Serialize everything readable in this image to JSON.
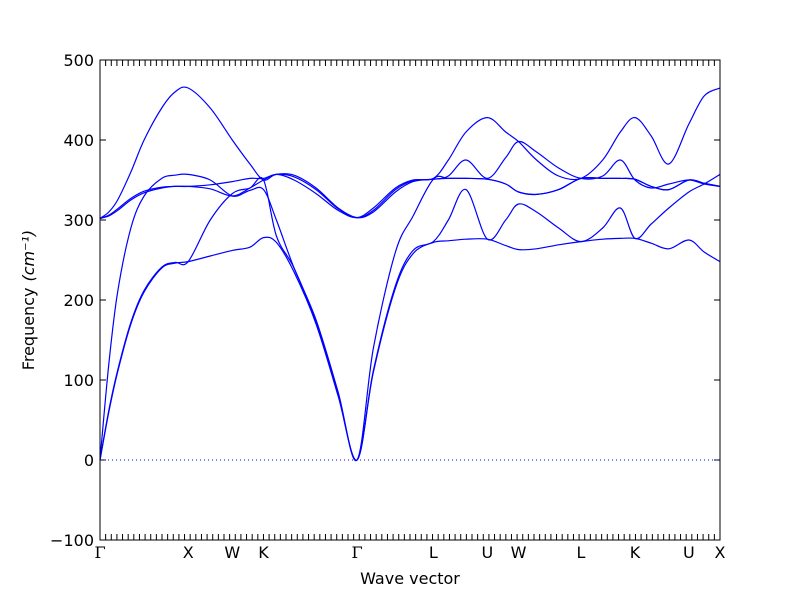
{
  "chart_data": {
    "type": "line",
    "xlabel": "Wave vector",
    "ylabel": "Frequency",
    "ylabel_unit": "(cm⁻¹)",
    "ylim": [
      -100,
      500
    ],
    "yticks": [
      -100,
      0,
      100,
      200,
      300,
      400,
      500
    ],
    "zero_line": 0,
    "high_symmetry_points": [
      {
        "label": "Γ",
        "x": 0.0
      },
      {
        "label": "X",
        "x": 1.0
      },
      {
        "label": "W",
        "x": 1.5
      },
      {
        "label": "K",
        "x": 1.854
      },
      {
        "label": "Γ",
        "x": 2.914
      },
      {
        "label": "L",
        "x": 3.78
      },
      {
        "label": "U",
        "x": 4.392
      },
      {
        "label": "W",
        "x": 4.746
      },
      {
        "label": "L",
        "x": 5.453
      },
      {
        "label": "K",
        "x": 6.066
      },
      {
        "label": "U",
        "x": 6.677
      },
      {
        "label": "X",
        "x": 7.03
      }
    ],
    "line_color": "#0000ff",
    "series": [
      {
        "x": [
          0,
          0.1,
          0.2,
          0.35,
          0.5,
          0.7,
          0.85,
          1.0,
          1.25,
          1.5,
          1.7,
          1.854,
          2.0,
          2.2,
          2.45,
          2.7,
          2.914,
          3.1,
          3.35,
          3.55,
          3.78,
          3.95,
          4.15,
          4.392,
          4.6,
          4.746,
          4.95,
          5.2,
          5.453,
          5.7,
          5.9,
          6.066,
          6.25,
          6.45,
          6.677,
          6.85,
          7.03
        ],
        "y": [
          0,
          60,
          110,
          170,
          210,
          240,
          246,
          248,
          255,
          262,
          266,
          278,
          272,
          235,
          170,
          80,
          0,
          110,
          215,
          258,
          272,
          274,
          276,
          276,
          268,
          263,
          264,
          269,
          273,
          276,
          277,
          277,
          271,
          264,
          275,
          260,
          248
        ]
      },
      {
        "x": [
          0,
          0.1,
          0.2,
          0.35,
          0.5,
          0.7,
          0.85,
          1.0,
          1.25,
          1.5,
          1.7,
          1.854,
          2.0,
          2.2,
          2.45,
          2.7,
          2.914,
          3.1,
          3.35,
          3.55,
          3.78,
          3.95,
          4.15,
          4.392,
          4.6,
          4.746,
          4.95,
          5.2,
          5.453,
          5.7,
          5.9,
          6.066,
          6.25,
          6.45,
          6.677,
          6.85,
          7.03
        ],
        "y": [
          0,
          62,
          112,
          172,
          212,
          241,
          247,
          248,
          300,
          333,
          340,
          350,
          280,
          240,
          172,
          82,
          0,
          112,
          218,
          262,
          273,
          300,
          338,
          276,
          300,
          320,
          310,
          290,
          273,
          290,
          315,
          277,
          295,
          315,
          335,
          345,
          357
        ]
      },
      {
        "x": [
          0,
          0.1,
          0.2,
          0.35,
          0.5,
          0.7,
          0.85,
          1.0,
          1.25,
          1.5,
          1.7,
          1.854,
          2.0,
          2.2,
          2.45,
          2.7,
          2.914,
          3.1,
          3.35,
          3.55,
          3.78,
          3.95,
          4.15,
          4.392,
          4.6,
          4.746,
          4.95,
          5.2,
          5.453,
          5.7,
          5.9,
          6.066,
          6.25,
          6.45,
          6.677,
          6.85,
          7.03
        ],
        "y": [
          0,
          120,
          210,
          290,
          330,
          352,
          356,
          357,
          350,
          330,
          337,
          338,
          300,
          240,
          175,
          85,
          0,
          140,
          260,
          305,
          351,
          352,
          352,
          351,
          345,
          335,
          332,
          338,
          352,
          352,
          352,
          351,
          342,
          338,
          350,
          346,
          342
        ]
      },
      {
        "x": [
          0,
          0.1,
          0.2,
          0.35,
          0.5,
          0.7,
          0.85,
          1.0,
          1.25,
          1.5,
          1.7,
          1.854,
          2.0,
          2.2,
          2.45,
          2.7,
          2.914,
          3.1,
          3.35,
          3.55,
          3.78,
          3.95,
          4.15,
          4.392,
          4.6,
          4.746,
          4.95,
          5.2,
          5.453,
          5.7,
          5.9,
          6.066,
          6.25,
          6.45,
          6.677,
          6.85,
          7.03
        ],
        "y": [
          302,
          305,
          312,
          325,
          334,
          340,
          342,
          342,
          339,
          330,
          340,
          350,
          357,
          356,
          340,
          315,
          303,
          310,
          335,
          348,
          351,
          352,
          352,
          351,
          345,
          335,
          332,
          338,
          352,
          352,
          352,
          351,
          342,
          338,
          350,
          346,
          342
        ]
      },
      {
        "x": [
          0,
          0.1,
          0.2,
          0.35,
          0.5,
          0.7,
          0.85,
          1.0,
          1.25,
          1.5,
          1.7,
          1.854,
          2.0,
          2.2,
          2.45,
          2.7,
          2.914,
          3.1,
          3.35,
          3.55,
          3.78,
          3.95,
          4.15,
          4.392,
          4.6,
          4.746,
          4.95,
          5.2,
          5.453,
          5.7,
          5.9,
          6.066,
          6.25,
          6.45,
          6.677,
          6.85,
          7.03
        ],
        "y": [
          302,
          306,
          314,
          327,
          336,
          341,
          342,
          342,
          344,
          348,
          352,
          352,
          357,
          354,
          338,
          314,
          303,
          312,
          338,
          349,
          351,
          355,
          375,
          352,
          378,
          398,
          385,
          365,
          352,
          355,
          375,
          350,
          340,
          345,
          350,
          345,
          342
        ]
      },
      {
        "x": [
          0,
          0.1,
          0.2,
          0.35,
          0.5,
          0.7,
          0.85,
          1.0,
          1.25,
          1.5,
          1.7,
          1.854,
          2.0,
          2.2,
          2.45,
          2.7,
          2.914,
          3.1,
          3.35,
          3.55,
          3.78,
          3.95,
          4.15,
          4.392,
          4.6,
          4.746,
          4.95,
          5.2,
          5.453,
          5.7,
          5.9,
          6.066,
          6.25,
          6.45,
          6.677,
          6.85,
          7.03
        ],
        "y": [
          302,
          310,
          325,
          360,
          400,
          440,
          460,
          465,
          440,
          400,
          370,
          350,
          357,
          350,
          333,
          312,
          303,
          315,
          340,
          350,
          352,
          375,
          410,
          428,
          410,
          398,
          375,
          355,
          352,
          375,
          410,
          428,
          405,
          370,
          420,
          455,
          465
        ]
      }
    ]
  }
}
